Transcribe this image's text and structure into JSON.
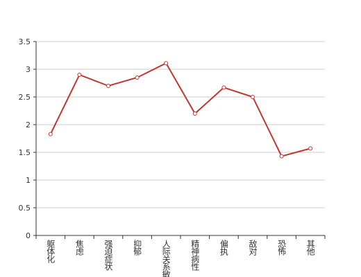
{
  "chart_data": {
    "type": "line",
    "categories": [
      "躯体化",
      "焦虑",
      "强迫症状",
      "抑郁",
      "人际关系敏感",
      "精神病性",
      "偏执",
      "敌对",
      "恐怖",
      "其他"
    ],
    "series": [
      {
        "color": "#c23531",
        "values": [
          1.83,
          2.9,
          2.7,
          2.85,
          3.11,
          2.2,
          2.67,
          2.5,
          1.43,
          1.57
        ]
      }
    ],
    "ylim": [
      0,
      3.5
    ],
    "yticks": [
      0,
      0.5,
      1,
      1.5,
      2,
      2.5,
      3,
      3.5
    ],
    "grid": true
  }
}
